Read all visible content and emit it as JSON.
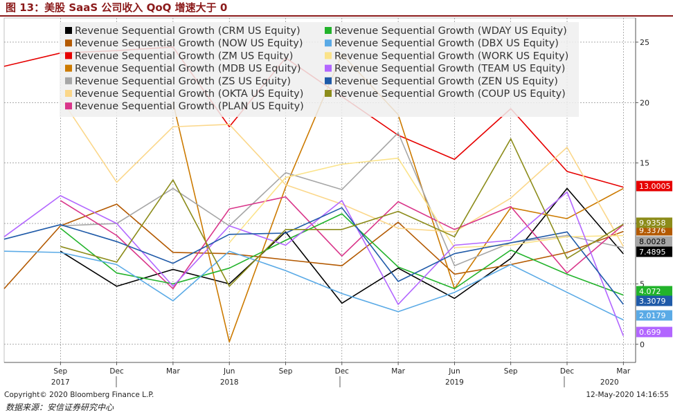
{
  "page": {
    "title": "图 13：美股 SaaS 公司收入 QoQ 增速大于 0",
    "copyright": "Copyright© 2020 Bloomberg Finance L.P.",
    "timestamp": "12-May-2020 14:16:55",
    "source": "数据来源：安信证券研究中心"
  },
  "chart_data": {
    "type": "line",
    "title": "",
    "xlabel": "",
    "ylabel": "",
    "x": [
      "Jun-2017",
      "Sep-2017",
      "Dec-2017",
      "Mar-2018",
      "Jun-2018",
      "Sep-2018",
      "Dec-2018",
      "Mar-2019",
      "Jun-2019",
      "Sep-2019",
      "Dec-2019",
      "Mar-2020"
    ],
    "x_tick_labels": [
      "Sep",
      "Dec",
      "Mar",
      "Jun",
      "Sep",
      "Dec",
      "Mar",
      "Jun",
      "Sep",
      "Dec",
      "Mar"
    ],
    "x_year_labels": [
      "2017",
      "2018",
      "2019",
      "2020"
    ],
    "ylim": [
      -1.5,
      27
    ],
    "y_ticks": [
      0,
      5,
      10,
      15,
      20,
      25
    ],
    "y_tick_labels": [
      "0",
      "5",
      "10",
      "15",
      "20",
      "25"
    ],
    "grid": true,
    "legend": "top",
    "series": [
      {
        "name": "Revenue Sequential Growth (CRM US Equity)",
        "color": "#000000",
        "values": [
          null,
          7.7,
          4.8,
          6.2,
          5.0,
          9.3,
          3.4,
          6.3,
          3.8,
          7.1,
          12.9,
          7.4895
        ],
        "end_label": "7.4895"
      },
      {
        "name": "Revenue Sequential Growth (NOW US Equity)",
        "color": "#b35900",
        "values": [
          4.6,
          9.8,
          11.6,
          7.6,
          7.5,
          7.0,
          6.5,
          10.1,
          5.8,
          6.6,
          7.6,
          9.3376
        ],
        "end_label": "9.3376"
      },
      {
        "name": "Revenue Sequential Growth (ZM US Equity)",
        "color": "#e60000",
        "values": [
          23.0,
          24.1,
          24.3,
          24.6,
          18.0,
          23.7,
          20.5,
          17.3,
          15.3,
          19.5,
          14.3,
          13.0005
        ],
        "end_label": "13.0005"
      },
      {
        "name": "Revenue Sequential Growth (MDB US Equity)",
        "color": "#cc7a00",
        "values": [
          null,
          null,
          null,
          20.0,
          0.2,
          13.0,
          24.0,
          19.0,
          4.6,
          11.3,
          10.4,
          12.9
        ],
        "end_label": ""
      },
      {
        "name": "Revenue Sequential Growth (ZS US Equity)",
        "color": "#a6a6a6",
        "values": [
          null,
          9.8,
          10.0,
          12.9,
          9.8,
          14.2,
          12.8,
          17.5,
          6.5,
          8.4,
          9.0,
          8.0
        ],
        "end_label": "8.0028"
      },
      {
        "name": "Revenue Sequential Growth (OKTA US Equity)",
        "color": "#fbd78a",
        "values": [
          null,
          20.4,
          13.4,
          18.0,
          18.2,
          13.2,
          11.6,
          9.6,
          9.3,
          12.1,
          16.3,
          8.1
        ],
        "end_label": ""
      },
      {
        "name": "Revenue Sequential Growth (PLAN US Equity)",
        "color": "#d9358a",
        "values": [
          null,
          11.9,
          9.0,
          4.6,
          11.2,
          12.2,
          7.3,
          11.8,
          9.5,
          11.4,
          5.9,
          9.9
        ],
        "end_label": ""
      },
      {
        "name": "Revenue Sequential Growth (WDAY US Equity)",
        "color": "#22b32b",
        "values": [
          null,
          9.6,
          5.9,
          5.0,
          6.3,
          8.6,
          10.8,
          6.4,
          4.6,
          7.8,
          5.8,
          4.072
        ],
        "end_label": "4.072"
      },
      {
        "name": "Revenue Sequential Growth (DBX US Equity)",
        "color": "#5aaae6",
        "values": [
          7.7,
          7.6,
          6.6,
          3.6,
          7.7,
          6.1,
          4.2,
          2.7,
          4.3,
          6.6,
          4.3,
          2.0179
        ],
        "end_label": "2.0179"
      },
      {
        "name": "Revenue Sequential Growth (WORK US Equity)",
        "color": "#fbe38a",
        "values": [
          null,
          null,
          null,
          null,
          8.4,
          13.8,
          14.9,
          15.4,
          8.0,
          8.2,
          8.9,
          9.0
        ],
        "end_label": ""
      },
      {
        "name": "Revenue Sequential Growth (TEAM US Equity)",
        "color": "#b266ff",
        "values": [
          8.9,
          12.3,
          10.0,
          4.8,
          9.8,
          8.2,
          11.9,
          3.3,
          8.2,
          8.6,
          12.6,
          0.699
        ],
        "end_label": "0.699"
      },
      {
        "name": "Revenue Sequential Growth (ZEN US Equity)",
        "color": "#1f5aa8",
        "values": [
          8.7,
          9.9,
          8.5,
          6.7,
          9.1,
          9.2,
          11.3,
          5.2,
          7.5,
          8.4,
          9.3,
          3.3079
        ],
        "end_label": "3.3079"
      },
      {
        "name": "Revenue Sequential Growth (COUP US Equity)",
        "color": "#8c8c1a",
        "values": [
          null,
          8.1,
          6.8,
          13.6,
          4.8,
          9.5,
          9.5,
          11.0,
          8.9,
          17.0,
          7.1,
          9.9358
        ],
        "end_label": "9.9358"
      }
    ]
  }
}
